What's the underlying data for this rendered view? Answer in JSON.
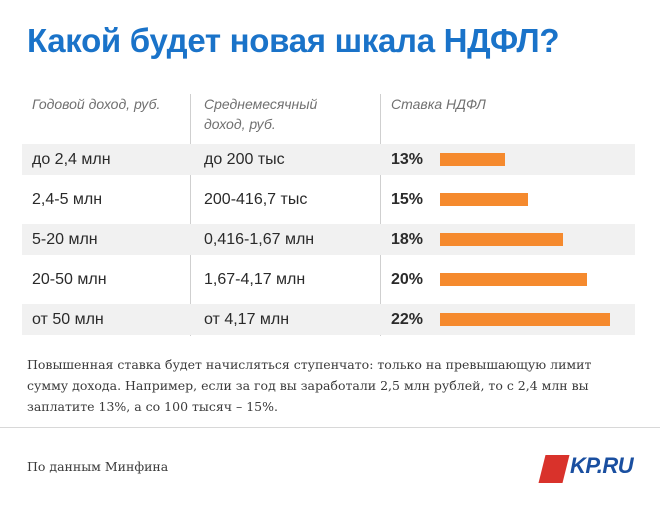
{
  "title": "Какой будет новая шкала НДФЛ?",
  "columns": {
    "annual": "Годовой доход, руб.",
    "monthly": "Среднемесячный доход, руб.",
    "rate": "Ставка НДФЛ"
  },
  "chart_data": {
    "type": "bar",
    "orientation": "horizontal",
    "categories": [
      "до 2,4 млн",
      "2,4-5 млн",
      "5-20 млн",
      "20-50 млн",
      "от 50 млн"
    ],
    "monthly_income": [
      "до 200 тыс",
      "200-416,7 тыс",
      "0,416-1,67 млн",
      "1,67-4,17 млн",
      "от 4,17 млн"
    ],
    "values": [
      13,
      15,
      18,
      20,
      22
    ],
    "value_labels": [
      "13%",
      "15%",
      "18%",
      "20%",
      "22%"
    ],
    "unit": "%",
    "xlim": [
      0,
      22
    ],
    "bar_color": "#f58a2e",
    "grid": false
  },
  "note": "Повышенная ставка будет начисляться ступенчато: только на превышающую лимит сумму дохода. Например, если за год вы заработали 2,5 млн рублей, то с 2,4 млн вы заплатите 13%, а со 100 тысяч – 15%.",
  "source": "По данным Минфина",
  "logo": {
    "text": "KP.RU",
    "brand_color": "#1a4fa0",
    "mark_color": "#d9322b"
  },
  "accent_color": "#1a73c9"
}
